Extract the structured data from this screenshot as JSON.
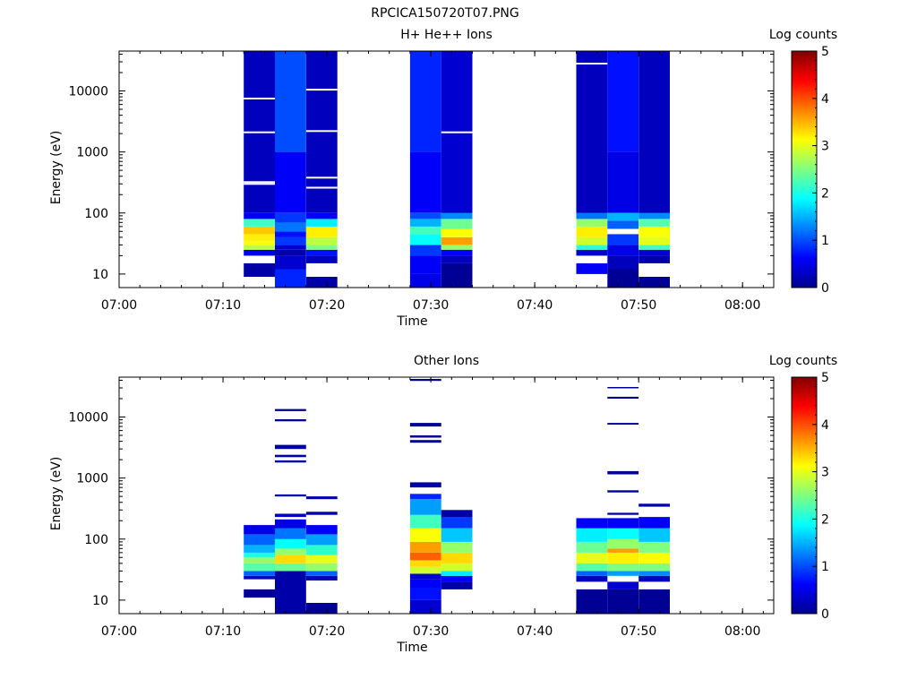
{
  "figure_title": "RPCICA150720T07.PNG",
  "chart_data": [
    {
      "type": "heatmap",
      "title": "H+ He++ Ions",
      "xlabel": "Time",
      "ylabel": "Energy (eV)",
      "x_ticks": [
        "07:00",
        "07:10",
        "07:20",
        "07:30",
        "07:40",
        "07:50",
        "08:00"
      ],
      "x_range": [
        "07:00",
        "08:03"
      ],
      "y_scale": "log",
      "y_range": [
        6,
        45000
      ],
      "y_ticks": [
        "10",
        "100",
        "1000",
        "10000"
      ],
      "colorbar": {
        "label": "Log counts",
        "range": [
          0,
          5
        ],
        "ticks": [
          "0",
          "1",
          "2",
          "3",
          "4",
          "5"
        ]
      },
      "columns": [
        {
          "start": "07:12",
          "end": "07:15",
          "cells": [
            [
              6,
              9,
              null
            ],
            [
              9,
              15,
              0.2
            ],
            [
              15,
              20,
              null
            ],
            [
              20,
              25,
              0.5
            ],
            [
              25,
              30,
              2.8
            ],
            [
              30,
              35,
              3.1
            ],
            [
              35,
              45,
              3.2
            ],
            [
              45,
              60,
              3.4
            ],
            [
              60,
              80,
              2.2
            ],
            [
              80,
              100,
              0.6
            ],
            [
              100,
              45000,
              0.3
            ]
          ]
        },
        {
          "start": "07:15",
          "end": "07:18",
          "cells": [
            [
              6,
              12,
              0.8
            ],
            [
              12,
              20,
              0.4
            ],
            [
              20,
              25,
              0.2
            ],
            [
              25,
              30,
              0.4
            ],
            [
              30,
              40,
              0.9
            ],
            [
              40,
              50,
              0.7
            ],
            [
              50,
              70,
              1.2
            ],
            [
              70,
              100,
              0.9
            ],
            [
              100,
              1000,
              0.6
            ],
            [
              1000,
              45000,
              1.0
            ]
          ]
        },
        {
          "start": "07:18",
          "end": "07:21",
          "cells": [
            [
              6,
              9,
              0.2
            ],
            [
              9,
              15,
              null
            ],
            [
              15,
              20,
              0.3
            ],
            [
              20,
              25,
              0.7
            ],
            [
              25,
              30,
              2.5
            ],
            [
              30,
              40,
              2.8
            ],
            [
              40,
              60,
              3.2
            ],
            [
              60,
              80,
              1.8
            ],
            [
              80,
              100,
              0.6
            ],
            [
              100,
              45000,
              0.3
            ]
          ]
        },
        {
          "start": "07:28",
          "end": "07:31",
          "cells": [
            [
              6,
              10,
              0.5
            ],
            [
              10,
              20,
              0.6
            ],
            [
              20,
              30,
              0.9
            ],
            [
              30,
              45,
              1.9
            ],
            [
              45,
              60,
              2.2
            ],
            [
              60,
              80,
              1.5
            ],
            [
              80,
              100,
              1.0
            ],
            [
              100,
              1000,
              0.6
            ],
            [
              1000,
              45000,
              0.8
            ]
          ]
        },
        {
          "start": "07:31",
          "end": "07:34",
          "cells": [
            [
              6,
              15,
              0.1
            ],
            [
              15,
              20,
              0.3
            ],
            [
              20,
              25,
              0.6
            ],
            [
              25,
              30,
              2.6
            ],
            [
              30,
              40,
              3.6
            ],
            [
              40,
              55,
              3.1
            ],
            [
              55,
              80,
              2.4
            ],
            [
              80,
              100,
              1.3
            ],
            [
              100,
              45000,
              0.4
            ]
          ]
        },
        {
          "start": "07:44",
          "end": "07:47",
          "cells": [
            [
              6,
              10,
              null
            ],
            [
              10,
              15,
              0.6
            ],
            [
              15,
              20,
              null
            ],
            [
              20,
              25,
              0.4
            ],
            [
              25,
              30,
              2.1
            ],
            [
              30,
              40,
              2.9
            ],
            [
              40,
              60,
              3.2
            ],
            [
              60,
              80,
              2.6
            ],
            [
              80,
              100,
              1.2
            ],
            [
              100,
              45000,
              0.3
            ]
          ]
        },
        {
          "start": "07:47",
          "end": "07:50",
          "cells": [
            [
              6,
              12,
              0.1
            ],
            [
              12,
              20,
              0.3
            ],
            [
              20,
              30,
              0.5
            ],
            [
              30,
              45,
              0.9
            ],
            [
              45,
              55,
              null
            ],
            [
              55,
              75,
              1.1
            ],
            [
              75,
              100,
              1.5
            ],
            [
              100,
              1000,
              0.5
            ],
            [
              1000,
              45000,
              0.7
            ]
          ]
        },
        {
          "start": "07:50",
          "end": "07:53",
          "cells": [
            [
              6,
              9,
              0.1
            ],
            [
              9,
              15,
              null
            ],
            [
              15,
              20,
              0.2
            ],
            [
              20,
              25,
              0.4
            ],
            [
              25,
              30,
              2.2
            ],
            [
              30,
              40,
              3.0
            ],
            [
              40,
              60,
              3.1
            ],
            [
              60,
              80,
              2.3
            ],
            [
              80,
              100,
              1.3
            ],
            [
              100,
              45000,
              0.3
            ]
          ]
        }
      ],
      "gaps": [
        {
          "column": 0,
          "energies": [
            7500,
            2100,
            300,
            320
          ]
        },
        {
          "column": 2,
          "energies": [
            10500,
            2200,
            260,
            380
          ]
        },
        {
          "column": 4,
          "energies": [
            2100
          ]
        },
        {
          "column": 5,
          "energies": [
            28000
          ]
        }
      ]
    },
    {
      "type": "heatmap",
      "title": "Other Ions",
      "xlabel": "Time",
      "ylabel": "Energy (eV)",
      "x_ticks": [
        "07:00",
        "07:10",
        "07:20",
        "07:30",
        "07:40",
        "07:50",
        "08:00"
      ],
      "x_range": [
        "07:00",
        "08:03"
      ],
      "y_scale": "log",
      "y_range": [
        6,
        45000
      ],
      "y_ticks": [
        "10",
        "100",
        "1000",
        "10000"
      ],
      "colorbar": {
        "label": "Log counts",
        "range": [
          0,
          5
        ],
        "ticks": [
          "0",
          "1",
          "2",
          "3",
          "4",
          "5"
        ]
      },
      "columns": [
        {
          "start": "07:12",
          "end": "07:15",
          "cells": [
            [
              11,
              15,
              0.1
            ],
            [
              22,
              25,
              0.3
            ],
            [
              25,
              30,
              1.1
            ],
            [
              30,
              40,
              2.3
            ],
            [
              40,
              50,
              2.6
            ],
            [
              50,
              60,
              2.0
            ],
            [
              60,
              80,
              1.5
            ],
            [
              80,
              120,
              1.1
            ],
            [
              120,
              170,
              0.5
            ]
          ]
        },
        {
          "start": "07:15",
          "end": "07:18",
          "cells": [
            [
              6,
              30,
              0.2
            ],
            [
              30,
              40,
              2.4
            ],
            [
              40,
              55,
              3.3
            ],
            [
              55,
              70,
              2.6
            ],
            [
              70,
              100,
              1.9
            ],
            [
              100,
              150,
              1.2
            ],
            [
              150,
              210,
              0.5
            ],
            [
              230,
              260,
              0.3
            ],
            [
              500,
              540,
              0.2
            ],
            [
              1800,
              1950,
              0.2
            ],
            [
              2200,
              2400,
              0.2
            ],
            [
              3000,
              3500,
              0.2
            ],
            [
              8500,
              9200,
              0.1
            ],
            [
              12500,
              13500,
              0.1
            ]
          ]
        },
        {
          "start": "07:18",
          "end": "07:21",
          "cells": [
            [
              6,
              9,
              0.1
            ],
            [
              21,
              25,
              0.3
            ],
            [
              25,
              30,
              1.1
            ],
            [
              30,
              40,
              2.6
            ],
            [
              40,
              55,
              3.0
            ],
            [
              55,
              80,
              2.1
            ],
            [
              80,
              120,
              1.4
            ],
            [
              120,
              170,
              0.6
            ],
            [
              250,
              280,
              0.2
            ],
            [
              450,
              500,
              0.2
            ]
          ]
        },
        {
          "start": "07:28",
          "end": "07:31",
          "cells": [
            [
              6,
              10,
              0.4
            ],
            [
              10,
              16,
              0.7
            ],
            [
              16,
              22,
              0.6
            ],
            [
              22,
              27,
              0.4
            ],
            [
              27,
              35,
              2.9
            ],
            [
              35,
              45,
              3.3
            ],
            [
              45,
              60,
              3.9
            ],
            [
              60,
              90,
              3.6
            ],
            [
              90,
              150,
              3.1
            ],
            [
              150,
              250,
              2.2
            ],
            [
              250,
              450,
              1.4
            ],
            [
              450,
              550,
              0.8
            ],
            [
              700,
              850,
              0.2
            ],
            [
              3800,
              4200,
              0.1
            ],
            [
              4600,
              5000,
              0.1
            ],
            [
              7000,
              8000,
              0.1
            ],
            [
              39000,
              42000,
              0.1
            ]
          ]
        },
        {
          "start": "07:31",
          "end": "07:34",
          "cells": [
            [
              15,
              20,
              0.2
            ],
            [
              20,
              25,
              0.6
            ],
            [
              25,
              30,
              1.8
            ],
            [
              30,
              40,
              2.9
            ],
            [
              40,
              60,
              3.3
            ],
            [
              60,
              90,
              2.6
            ],
            [
              90,
              150,
              1.6
            ],
            [
              150,
              230,
              0.9
            ],
            [
              230,
              300,
              0.2
            ]
          ]
        },
        {
          "start": "07:44",
          "end": "07:47",
          "cells": [
            [
              6,
              15,
              0.1
            ],
            [
              20,
              25,
              0.3
            ],
            [
              25,
              30,
              1.1
            ],
            [
              30,
              40,
              2.3
            ],
            [
              40,
              60,
              3.0
            ],
            [
              60,
              90,
              2.4
            ],
            [
              90,
              150,
              1.8
            ],
            [
              150,
              220,
              0.6
            ]
          ]
        },
        {
          "start": "07:47",
          "end": "07:50",
          "cells": [
            [
              6,
              15,
              0.1
            ],
            [
              15,
              20,
              0.4
            ],
            [
              25,
              30,
              1.4
            ],
            [
              30,
              40,
              2.5
            ],
            [
              40,
              60,
              3.2
            ],
            [
              60,
              70,
              3.6
            ],
            [
              70,
              100,
              2.6
            ],
            [
              100,
              150,
              1.9
            ],
            [
              150,
              220,
              0.6
            ],
            [
              250,
              270,
              0.2
            ],
            [
              580,
              630,
              0.1
            ],
            [
              1150,
              1300,
              0.1
            ],
            [
              7500,
              8000,
              0.1
            ],
            [
              20000,
              21500,
              0.1
            ],
            [
              29500,
              31000,
              0.1
            ]
          ]
        },
        {
          "start": "07:50",
          "end": "07:53",
          "cells": [
            [
              6,
              9,
              0.1
            ],
            [
              9,
              15,
              0.1
            ],
            [
              20,
              25,
              0.3
            ],
            [
              25,
              30,
              1.3
            ],
            [
              30,
              40,
              2.5
            ],
            [
              40,
              60,
              3.1
            ],
            [
              60,
              90,
              2.5
            ],
            [
              90,
              150,
              1.6
            ],
            [
              150,
              230,
              0.6
            ],
            [
              340,
              380,
              0.2
            ]
          ]
        }
      ],
      "gaps": []
    }
  ]
}
